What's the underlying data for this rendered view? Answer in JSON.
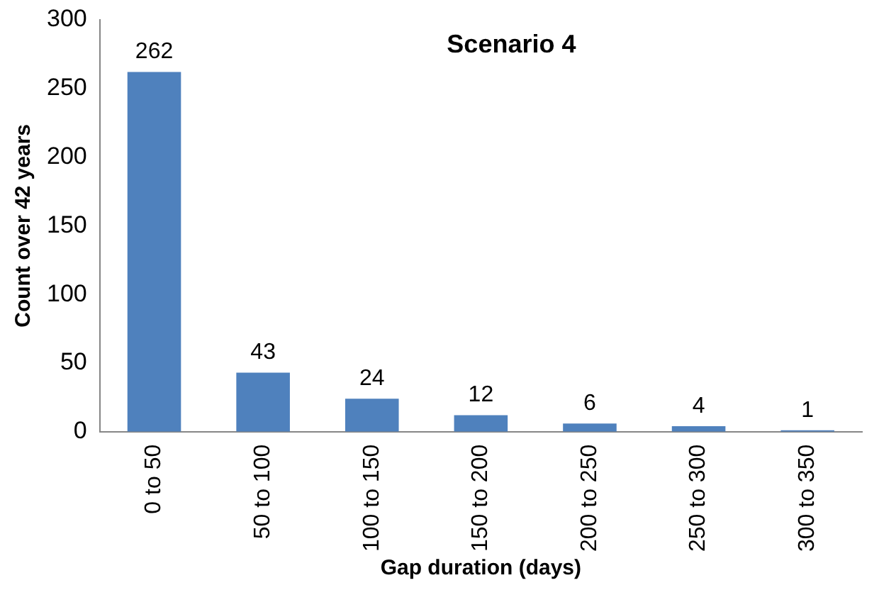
{
  "chart_data": {
    "type": "bar",
    "title": "Scenario 4",
    "xlabel": "Gap duration (days)",
    "ylabel": "Count over 42 years",
    "categories": [
      "0 to 50",
      "50 to 100",
      "100 to 150",
      "150 to 200",
      "200 to 250",
      "250 to 300",
      "300 to 350"
    ],
    "values": [
      262,
      43,
      24,
      12,
      6,
      4,
      1
    ],
    "color": "#4f81bd",
    "ylim": [
      0,
      300
    ],
    "yticks": [
      0,
      50,
      100,
      150,
      200,
      250,
      300
    ],
    "grid": false,
    "legend": false,
    "data_labels": true
  }
}
